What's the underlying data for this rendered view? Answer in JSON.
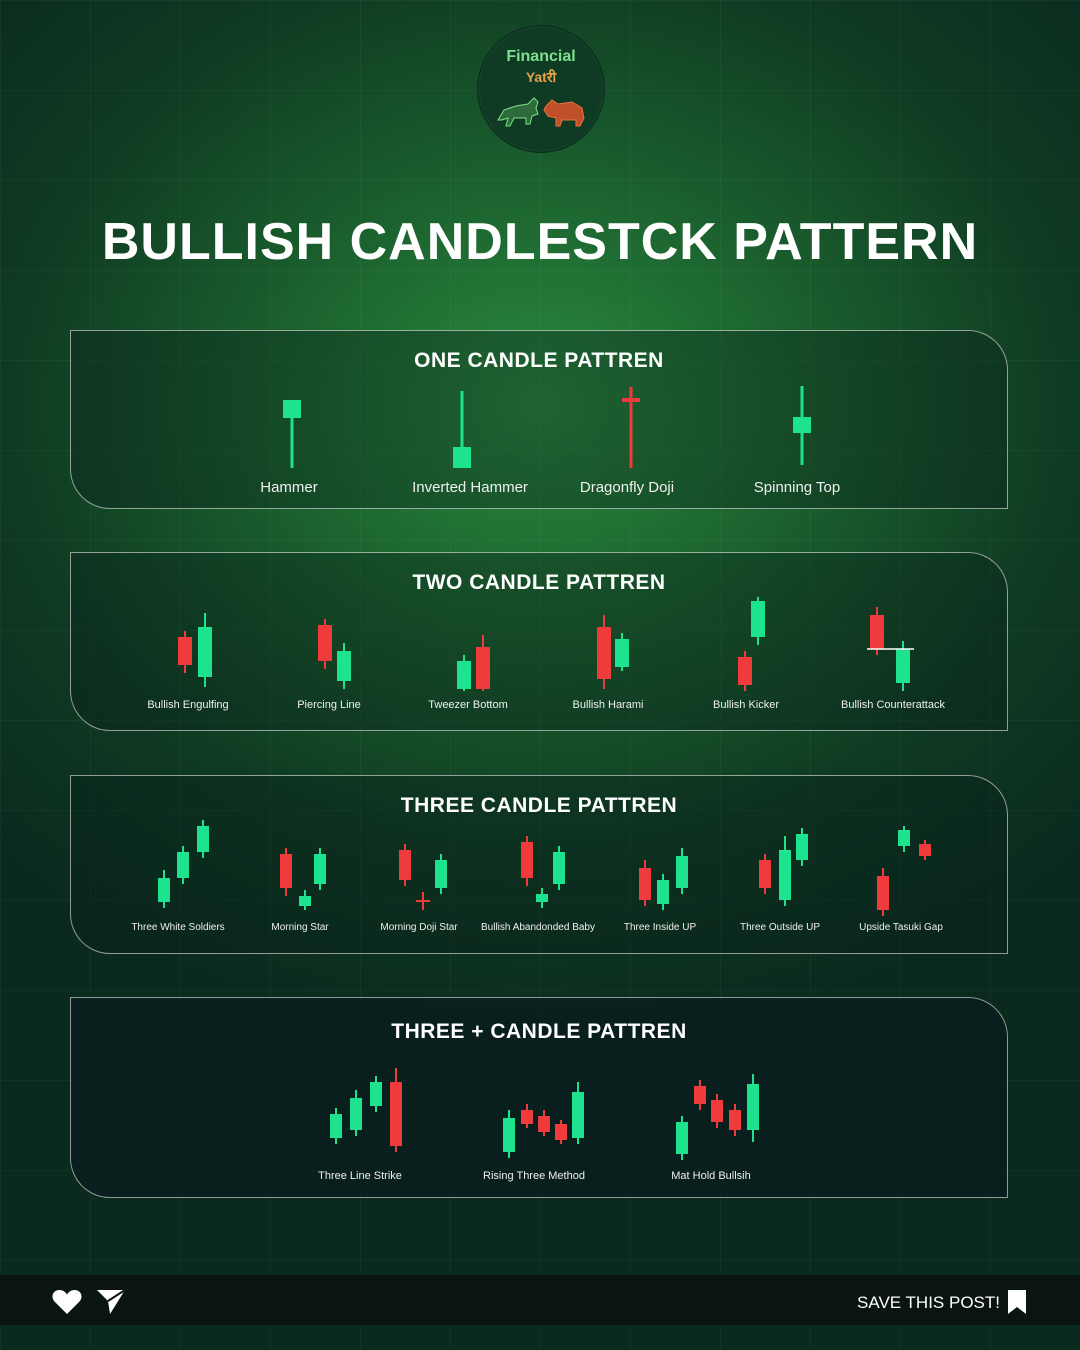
{
  "logo": {
    "line1": "Financial",
    "line2": "Yatरी"
  },
  "title": "BULLISH CANDLESTCK PATTERN",
  "colors": {
    "bull": "#1de28e",
    "bear": "#ef3b3b"
  },
  "sections": [
    {
      "heading": "ONE CANDLE PATTREN",
      "patterns": [
        {
          "label": "Hammer"
        },
        {
          "label": "Inverted Hammer"
        },
        {
          "label": "Dragonfly Doji"
        },
        {
          "label": "Spinning Top"
        }
      ]
    },
    {
      "heading": "TWO CANDLE PATTREN",
      "patterns": [
        {
          "label": "Bullish Engulfing"
        },
        {
          "label": "Piercing Line"
        },
        {
          "label": "Tweezer Bottom"
        },
        {
          "label": "Bullish Harami"
        },
        {
          "label": "Bullish Kicker"
        },
        {
          "label": "Bullish Counterattack"
        }
      ]
    },
    {
      "heading": "THREE CANDLE PATTREN",
      "patterns": [
        {
          "label": "Three White Soldiers"
        },
        {
          "label": "Morning Star"
        },
        {
          "label": "Morning Doji Star"
        },
        {
          "label": "Bullish Abandonded Baby"
        },
        {
          "label": "Three Inside UP"
        },
        {
          "label": "Three Outside UP"
        },
        {
          "label": "Upside Tasuki Gap"
        }
      ]
    },
    {
      "heading": "THREE + CANDLE PATTREN",
      "patterns": [
        {
          "label": "Three Line Strike"
        },
        {
          "label": "Rising Three Method"
        },
        {
          "label": "Mat Hold Bullsih"
        }
      ]
    }
  ],
  "footer": {
    "save_label": "SAVE THIS POST!",
    "icons": [
      "heart-icon",
      "send-icon",
      "bookmark-icon"
    ]
  }
}
